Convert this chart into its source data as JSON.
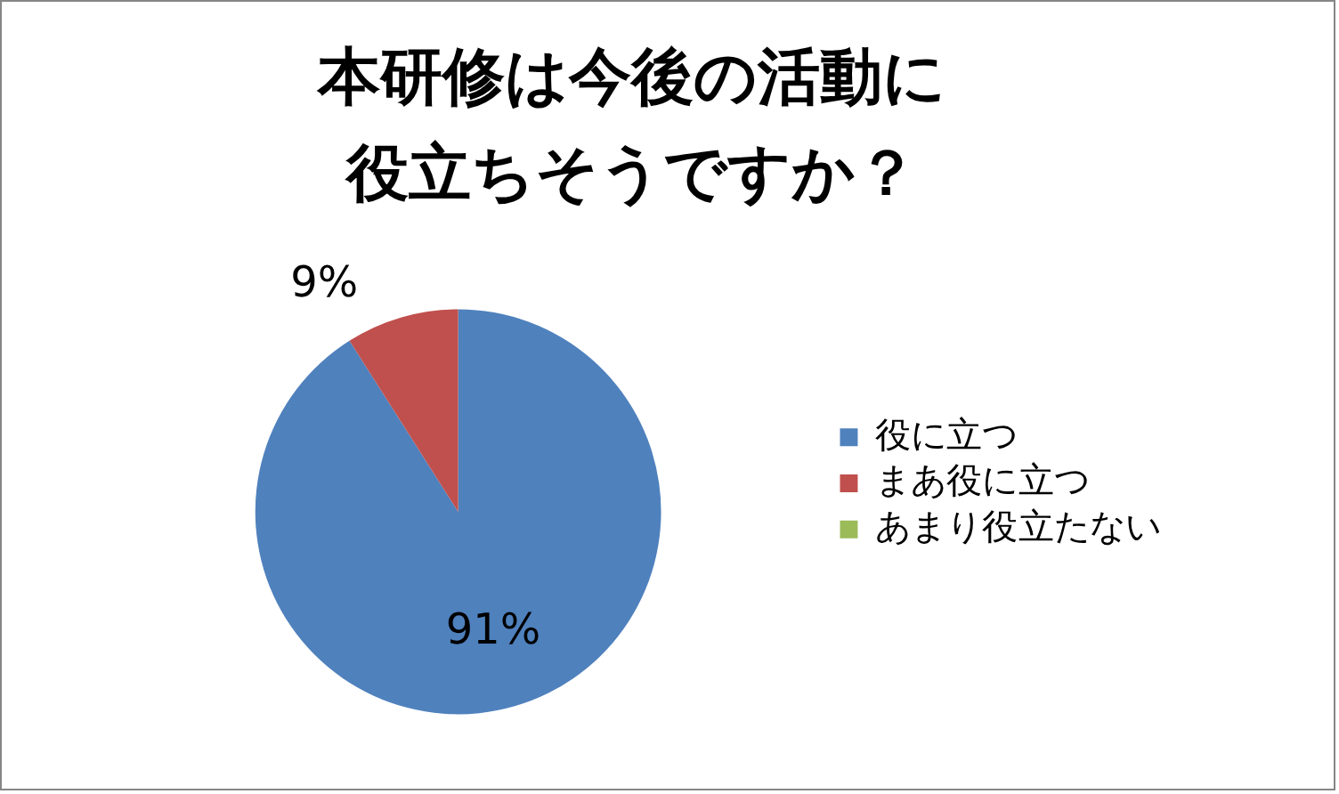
{
  "chart_data": {
    "type": "pie",
    "title": "本研修は今後の活動に役立ちそうですか？",
    "categories": [
      "役に立つ",
      "まあ役に立つ",
      "あまり役立たない"
    ],
    "values": [
      91,
      9,
      0
    ],
    "colors": [
      "#4f81bd",
      "#c0504d",
      "#9bbb59"
    ],
    "value_labels": [
      "91%",
      "9%",
      null
    ],
    "legend": "right"
  }
}
